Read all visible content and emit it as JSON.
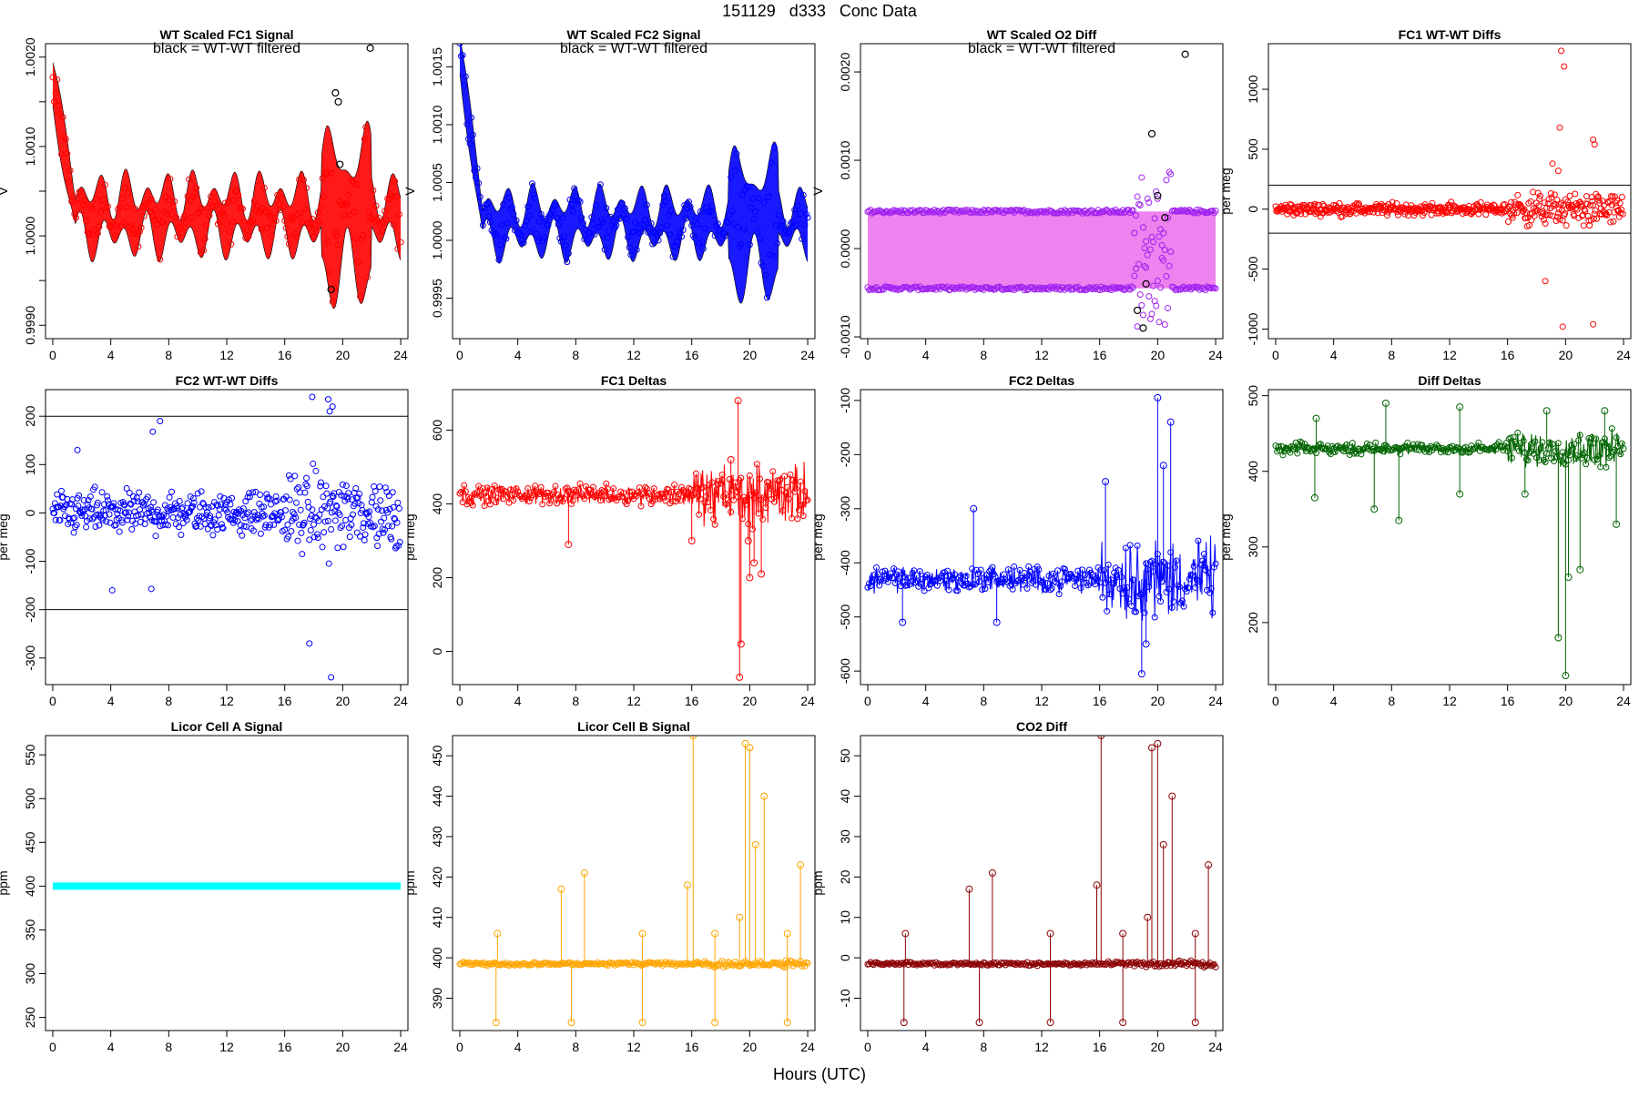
{
  "figure": {
    "title": "151129   d333   Conc Data",
    "x_axis_title": "Hours (UTC)"
  },
  "chart_data": [
    {
      "id": "fc1-signal",
      "type": "scatter",
      "title": "WT Scaled FC1 Signal",
      "annotation": "black = WT-WT filtered",
      "ylabel": "V",
      "color": "#ff0000",
      "xlim": [
        -0.5,
        24.5
      ],
      "ylim": [
        0.99885,
        1.00215
      ],
      "xticks": [
        0,
        4,
        8,
        12,
        16,
        20,
        24
      ],
      "yticks": [
        0.999,
        0.9995,
        1.0,
        1.0005,
        1.001,
        1.0015,
        1.002
      ],
      "ytick_labels": [
        "0.9990",
        "",
        "1.0000",
        "",
        "1.0010",
        "",
        "1.0020"
      ],
      "band": {
        "kind": "oscillation",
        "baseline": 1.00023,
        "amplitude": 0.0003,
        "decay_start": 1.0017
      },
      "flagged_points": [
        [
          19.5,
          1.0016
        ],
        [
          19.7,
          1.0015
        ],
        [
          19.8,
          1.0008
        ],
        [
          21.9,
          1.0021
        ],
        [
          19.2,
          0.9994
        ]
      ]
    },
    {
      "id": "fc2-signal",
      "type": "scatter",
      "title": "WT Scaled FC2 Signal",
      "annotation": "black = WT-WT filtered",
      "ylabel": "V",
      "color": "#0000ff",
      "xlim": [
        -0.5,
        24.5
      ],
      "ylim": [
        0.99915,
        1.0017
      ],
      "xticks": [
        0,
        4,
        8,
        12,
        16,
        20,
        24
      ],
      "yticks": [
        0.9995,
        1.0,
        1.0005,
        1.001,
        1.0015
      ],
      "ytick_labels": [
        "0.9995",
        "1.0000",
        "1.0005",
        "1.0010",
        "1.0015"
      ],
      "band": {
        "kind": "oscillation",
        "baseline": 1.00015,
        "amplitude": 0.0002,
        "decay_start": 1.0016
      }
    },
    {
      "id": "o2-diff",
      "type": "scatter",
      "title": "WT Scaled O2 Diff",
      "annotation": "black = WT-WT filtered",
      "ylabel": "V",
      "color": "#a020f0",
      "fill": "#ee82ee",
      "xlim": [
        -0.5,
        24.5
      ],
      "ylim": [
        -0.00102,
        0.00232
      ],
      "xticks": [
        0,
        4,
        8,
        12,
        16,
        20,
        24
      ],
      "yticks": [
        -0.001,
        0.0,
        0.001,
        0.002
      ],
      "ytick_labels": [
        "-0.0010",
        "0.0000",
        "0.0010",
        "0.0020"
      ],
      "band": {
        "kind": "two-level",
        "upper": 0.00042,
        "lower": -0.00045
      },
      "flagged_points": [
        [
          19.0,
          -0.0009
        ],
        [
          19.2,
          -0.0004
        ],
        [
          19.6,
          0.0013
        ],
        [
          20.0,
          0.0006
        ],
        [
          21.9,
          0.0022
        ],
        [
          20.5,
          0.00035
        ],
        [
          18.6,
          -0.0007
        ]
      ]
    },
    {
      "id": "fc1-wtwt-diffs",
      "type": "scatter",
      "title": "FC1 WT-WT Diffs",
      "ylabel": "per meg",
      "color": "#ff0000",
      "xlim": [
        -0.5,
        24.5
      ],
      "ylim": [
        -1080,
        1380
      ],
      "xticks": [
        0,
        4,
        8,
        12,
        16,
        20,
        24
      ],
      "yticks": [
        -1000,
        -500,
        0,
        500,
        1000
      ],
      "ytick_labels": [
        "-1000",
        "-500",
        "0",
        "500",
        "1000"
      ],
      "hlines": [
        200,
        -200
      ],
      "scatter": {
        "spread": 40,
        "late_spread": 110
      },
      "outliers": [
        [
          19.7,
          1320
        ],
        [
          19.9,
          1190
        ],
        [
          19.6,
          680
        ],
        [
          21.9,
          580
        ],
        [
          22.0,
          540
        ],
        [
          19.8,
          -980
        ],
        [
          21.9,
          -960
        ],
        [
          18.6,
          -600
        ],
        [
          19.1,
          380
        ],
        [
          19.5,
          320
        ]
      ]
    },
    {
      "id": "fc2-wtwt-diffs",
      "type": "scatter",
      "title": "FC2 WT-WT Diffs",
      "ylabel": "per meg",
      "color": "#0000ff",
      "xlim": [
        -0.5,
        24.5
      ],
      "ylim": [
        -355,
        255
      ],
      "xticks": [
        0,
        4,
        8,
        12,
        16,
        20,
        24
      ],
      "yticks": [
        -300,
        -200,
        -100,
        0,
        100,
        200
      ],
      "ytick_labels": [
        "-300",
        "-200",
        "-100",
        "0",
        "100",
        "200"
      ],
      "hlines": [
        200,
        -200
      ],
      "scatter": {
        "spread": 35,
        "late_spread": 65
      },
      "outliers": [
        [
          17.9,
          240
        ],
        [
          19.0,
          235
        ],
        [
          19.3,
          220
        ],
        [
          19.1,
          210
        ],
        [
          17.7,
          -270
        ],
        [
          19.2,
          -340
        ],
        [
          7.4,
          190
        ],
        [
          6.9,
          168
        ],
        [
          1.7,
          130
        ],
        [
          4.1,
          -160
        ],
        [
          6.8,
          -157
        ]
      ]
    },
    {
      "id": "fc1-deltas",
      "type": "line",
      "title": "FC1 Deltas",
      "ylabel": "per meg",
      "color": "#ff0000",
      "xlim": [
        -0.5,
        24.5
      ],
      "ylim": [
        -90,
        710
      ],
      "xticks": [
        0,
        4,
        8,
        12,
        16,
        20,
        24
      ],
      "yticks": [
        0,
        200,
        400,
        600
      ],
      "ytick_labels": [
        "0",
        "200",
        "400",
        "600"
      ],
      "series": {
        "baseline": 425,
        "noise": 20,
        "late_noise": 60,
        "spikes": [
          [
            19.2,
            680
          ],
          [
            19.3,
            -70
          ],
          [
            19.4,
            20
          ],
          [
            20.0,
            200
          ],
          [
            20.3,
            240
          ],
          [
            20.8,
            210
          ],
          [
            7.5,
            290
          ],
          [
            16.0,
            300
          ],
          [
            18.7,
            520
          ],
          [
            19.9,
            300
          ]
        ]
      }
    },
    {
      "id": "fc2-deltas",
      "type": "line",
      "title": "FC2 Deltas",
      "ylabel": "per meg",
      "color": "#0000ff",
      "xlim": [
        -0.5,
        24.5
      ],
      "ylim": [
        -625,
        -80
      ],
      "xticks": [
        0,
        4,
        8,
        12,
        16,
        20,
        24
      ],
      "yticks": [
        -600,
        -500,
        -400,
        -300,
        -200,
        -100
      ],
      "ytick_labels": [
        "-600",
        "-500",
        "-400",
        "-300",
        "-200",
        "-100"
      ],
      "series": {
        "baseline": -430,
        "noise": 18,
        "late_noise": 55,
        "spikes": [
          [
            20.0,
            -95
          ],
          [
            20.9,
            -140
          ],
          [
            18.9,
            -605
          ],
          [
            20.4,
            -220
          ],
          [
            7.3,
            -300
          ],
          [
            16.4,
            -250
          ],
          [
            2.4,
            -510
          ],
          [
            8.9,
            -510
          ],
          [
            19.2,
            -550
          ]
        ]
      }
    },
    {
      "id": "diff-deltas",
      "type": "line",
      "title": "Diff Deltas",
      "ylabel": "per meg",
      "color": "#006400",
      "xlim": [
        -0.5,
        24.5
      ],
      "ylim": [
        118,
        508
      ],
      "xticks": [
        0,
        4,
        8,
        12,
        16,
        20,
        24
      ],
      "yticks": [
        200,
        300,
        400,
        500
      ],
      "ytick_labels": [
        "200",
        "300",
        "400",
        "500"
      ],
      "series": {
        "baseline": 430,
        "noise": 6,
        "late_noise": 18,
        "spikes": [
          [
            7.6,
            490
          ],
          [
            2.8,
            470
          ],
          [
            12.7,
            485
          ],
          [
            22.7,
            480
          ],
          [
            18.7,
            480
          ],
          [
            20.0,
            130
          ],
          [
            19.5,
            180
          ],
          [
            20.2,
            260
          ],
          [
            21.0,
            270
          ],
          [
            6.8,
            350
          ],
          [
            8.5,
            335
          ],
          [
            17.2,
            370
          ],
          [
            12.7,
            370
          ],
          [
            2.7,
            365
          ],
          [
            23.5,
            330
          ]
        ]
      }
    },
    {
      "id": "licor-a",
      "type": "line",
      "title": "Licor Cell A Signal",
      "ylabel": "ppm",
      "color": "#00ffff",
      "xlim": [
        -0.5,
        24.5
      ],
      "ylim": [
        235,
        572
      ],
      "xticks": [
        0,
        4,
        8,
        12,
        16,
        20,
        24
      ],
      "yticks": [
        250,
        300,
        350,
        400,
        450,
        500,
        550
      ],
      "ytick_labels": [
        "250",
        "300",
        "350",
        "400",
        "450",
        "500",
        "550"
      ],
      "series": {
        "baseline": 400,
        "noise": 0,
        "late_noise": 0,
        "spikes": []
      }
    },
    {
      "id": "licor-b",
      "type": "line",
      "title": "Licor Cell B Signal",
      "ylabel": "ppm",
      "color": "#ffa500",
      "xlim": [
        -0.5,
        24.5
      ],
      "ylim": [
        382,
        455
      ],
      "xticks": [
        0,
        4,
        8,
        12,
        16,
        20,
        24
      ],
      "yticks": [
        390,
        400,
        410,
        420,
        430,
        440,
        450
      ],
      "ytick_labels": [
        "390",
        "400",
        "410",
        "420",
        "430",
        "440",
        "450"
      ],
      "series": {
        "baseline": 398.5,
        "noise": 0.3,
        "late_noise": 0.6,
        "spikes": [
          [
            19.7,
            453
          ],
          [
            20.0,
            452
          ],
          [
            21.0,
            440
          ],
          [
            16.1,
            455
          ],
          [
            7.0,
            417
          ],
          [
            8.6,
            421
          ],
          [
            20.4,
            428
          ],
          [
            2.5,
            384
          ],
          [
            7.7,
            384
          ],
          [
            12.6,
            384
          ],
          [
            17.6,
            384
          ],
          [
            22.6,
            384
          ],
          [
            2.6,
            406
          ],
          [
            12.6,
            406
          ],
          [
            17.6,
            406
          ],
          [
            22.6,
            406
          ],
          [
            15.7,
            418
          ],
          [
            23.5,
            423
          ],
          [
            19.3,
            410
          ]
        ]
      }
    },
    {
      "id": "co2-diff",
      "type": "line",
      "title": "CO2 Diff",
      "ylabel": "ppm",
      "color": "#8b0000",
      "xlim": [
        -0.5,
        24.5
      ],
      "ylim": [
        -18,
        55
      ],
      "xticks": [
        0,
        4,
        8,
        12,
        16,
        20,
        24
      ],
      "yticks": [
        -10,
        0,
        10,
        20,
        30,
        40,
        50
      ],
      "ytick_labels": [
        "-10",
        "0",
        "10",
        "20",
        "30",
        "40",
        "50"
      ],
      "series": {
        "baseline": -1.5,
        "noise": 0.3,
        "late_noise": 0.6,
        "spikes": [
          [
            19.6,
            52
          ],
          [
            20.0,
            53
          ],
          [
            21.0,
            40
          ],
          [
            16.1,
            55
          ],
          [
            7.0,
            17
          ],
          [
            8.6,
            21
          ],
          [
            20.4,
            28
          ],
          [
            2.5,
            -16
          ],
          [
            7.7,
            -16
          ],
          [
            12.6,
            -16
          ],
          [
            17.6,
            -16
          ],
          [
            22.6,
            -16
          ],
          [
            2.6,
            6
          ],
          [
            12.6,
            6
          ],
          [
            17.6,
            6
          ],
          [
            22.6,
            6
          ],
          [
            15.8,
            18
          ],
          [
            23.5,
            23
          ],
          [
            19.3,
            10
          ]
        ]
      }
    }
  ]
}
